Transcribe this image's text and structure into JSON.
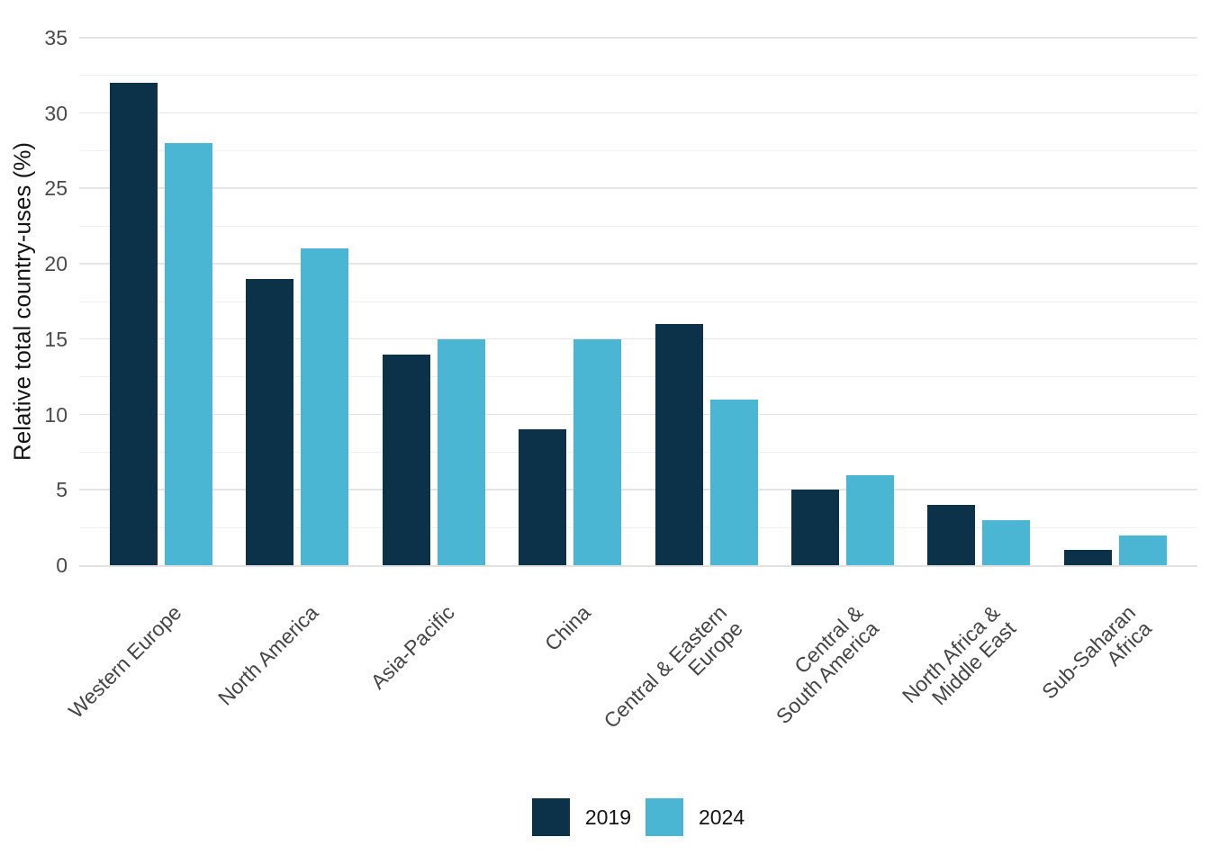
{
  "chart_data": {
    "type": "bar",
    "title": "",
    "xlabel": "",
    "ylabel": "Relative total country-uses (%)",
    "categories": [
      "Western Europe",
      "North America",
      "Asia-Pacific",
      "China",
      "Central & Eastern\nEurope",
      "Central &\nSouth America",
      "North Africa &\nMiddle East",
      "Sub-Saharan\nAfrica"
    ],
    "series": [
      {
        "name": "2019",
        "color": "#0B3248",
        "values": [
          32,
          19,
          14,
          9,
          16,
          5,
          4,
          1
        ]
      },
      {
        "name": "2024",
        "color": "#4BB6D3",
        "values": [
          28,
          21,
          15,
          15,
          11,
          6,
          3,
          2
        ]
      }
    ],
    "ylim": [
      0,
      35
    ],
    "yticks": [
      0,
      5,
      10,
      15,
      20,
      25,
      30,
      35
    ],
    "minor_tick_step": 2.5,
    "grid": "horizontal",
    "legend_position": "bottom-center",
    "colors": {
      "background": "#FFFFFF",
      "grid_major": "#E5E5E5",
      "grid_minor": "#F0F0F0",
      "axis_line": "#E1E1E1",
      "tick_label_text": "#4A4A4A",
      "axis_title_text": "#141414",
      "legend_text": "#141414"
    }
  }
}
